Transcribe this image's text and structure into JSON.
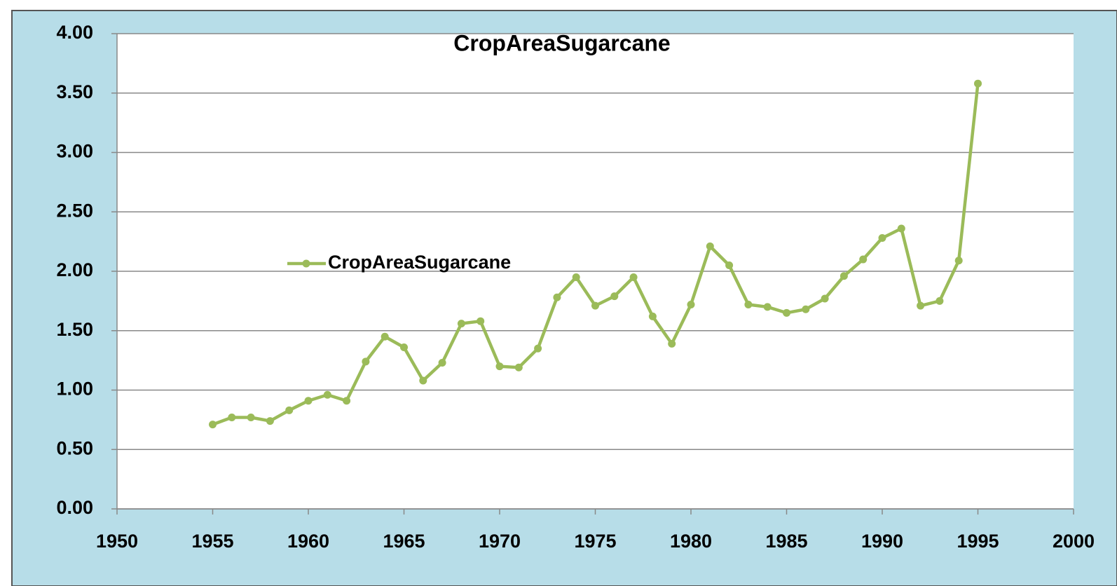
{
  "chart_data": {
    "type": "line",
    "title": "CropAreaSugarcane",
    "x": [
      1955,
      1956,
      1957,
      1958,
      1959,
      1960,
      1961,
      1962,
      1963,
      1964,
      1965,
      1966,
      1967,
      1968,
      1969,
      1970,
      1971,
      1972,
      1973,
      1974,
      1975,
      1976,
      1977,
      1978,
      1979,
      1980,
      1981,
      1982,
      1983,
      1984,
      1985,
      1986,
      1987,
      1988,
      1989,
      1990,
      1991,
      1992,
      1993,
      1994,
      1995
    ],
    "series": [
      {
        "name": "CropAreaSugarcane",
        "color": "#9bbb59",
        "values": [
          0.71,
          0.77,
          0.77,
          0.74,
          0.83,
          0.91,
          0.96,
          0.91,
          1.24,
          1.45,
          1.36,
          1.08,
          1.23,
          1.56,
          1.58,
          1.2,
          1.19,
          1.35,
          1.78,
          1.95,
          1.71,
          1.79,
          1.95,
          1.62,
          1.39,
          1.72,
          2.21,
          2.05,
          1.72,
          1.7,
          1.65,
          1.68,
          1.77,
          1.96,
          2.1,
          2.28,
          2.36,
          1.71,
          1.75,
          2.09,
          3.58
        ]
      }
    ],
    "xlim": [
      1950,
      2000
    ],
    "xticks": [
      1950,
      1955,
      1960,
      1965,
      1970,
      1975,
      1980,
      1985,
      1990,
      1995,
      2000
    ],
    "ylim": [
      0,
      4
    ],
    "yticks": [
      {
        "value": 0,
        "label": "0.00"
      },
      {
        "value": 0.5,
        "label": "0.50"
      },
      {
        "value": 1,
        "label": "1.00"
      },
      {
        "value": 1.5,
        "label": "1.50"
      },
      {
        "value": 2,
        "label": "2.00"
      },
      {
        "value": 2.5,
        "label": "2.50"
      },
      {
        "value": 3,
        "label": "3.00"
      },
      {
        "value": 3.5,
        "label": "3.50"
      },
      {
        "value": 4,
        "label": "4.00"
      }
    ],
    "grid": true,
    "marker": "circle"
  }
}
